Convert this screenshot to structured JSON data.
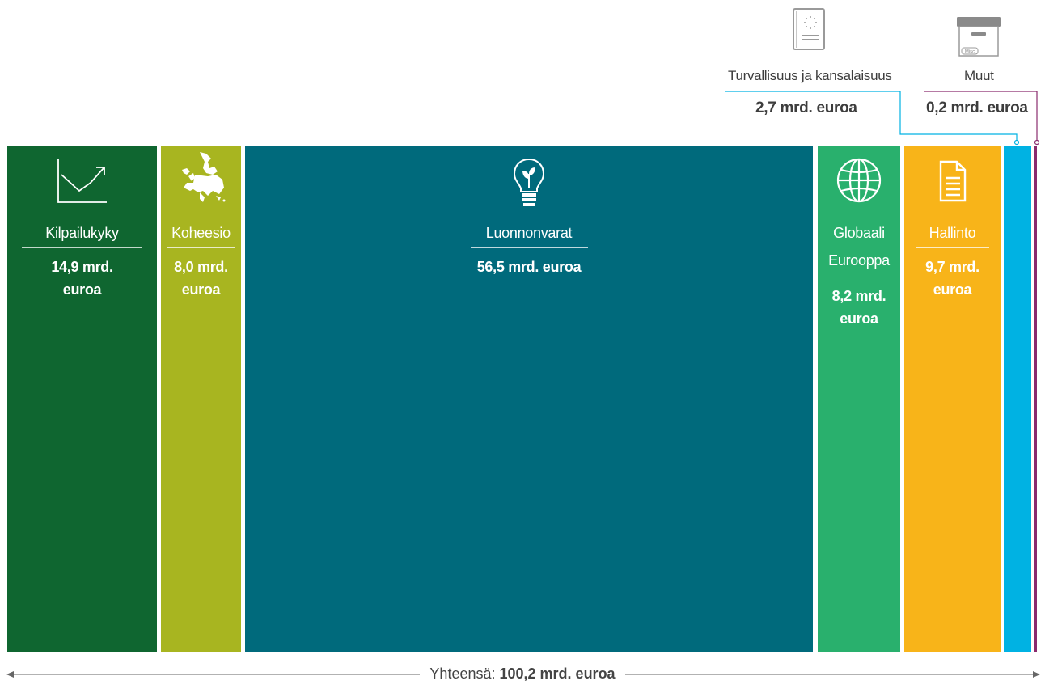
{
  "colors": {
    "kilpailukyky": "#0f6630",
    "koheesio": "#a8b520",
    "luonnonvarat": "#006a7c",
    "globaali": "#29b06d",
    "hallinto": "#f8b419",
    "turvallisuus": "#00b2e3",
    "muut": "#8a2a6e"
  },
  "chart_data": {
    "type": "bar",
    "title": "",
    "xlabel": "",
    "ylabel": "",
    "categories": [
      "Kilpailukyky",
      "Koheesio",
      "Luonnonvarat",
      "Globaali Eurooppa",
      "Hallinto",
      "Turvallisuus ja kansalaisuus",
      "Muut"
    ],
    "values": [
      14.9,
      8.0,
      56.5,
      8.2,
      9.7,
      2.7,
      0.2
    ],
    "unit": "mrd. euroa",
    "total": 100.2,
    "segments": [
      {
        "key": "kilpailukyky",
        "name": "Kilpailukyky",
        "amount_line1": "14,9 mrd.",
        "amount_line2": "euroa",
        "icon": "trend-chart-icon"
      },
      {
        "key": "koheesio",
        "name": "Koheesio",
        "amount_line1": "8,0 mrd.",
        "amount_line2": "euroa",
        "icon": "europe-map-icon"
      },
      {
        "key": "luonnonvarat",
        "name": "Luonnonvarat",
        "amount_line1": "56,5 mrd. euroa",
        "amount_line2": "",
        "icon": "lightbulb-sprout-icon"
      },
      {
        "key": "globaali",
        "name": "Globaali Eurooppa",
        "name_line1": "Globaali",
        "name_line2": "Eurooppa",
        "amount_line1": "8,2 mrd.",
        "amount_line2": "euroa",
        "icon": "globe-icon"
      },
      {
        "key": "hallinto",
        "name": "Hallinto",
        "amount_line1": "9,7 mrd.",
        "amount_line2": "euroa",
        "icon": "document-icon"
      },
      {
        "key": "turvallisuus",
        "name": "Turvallisuus ja kansalaisuus",
        "amount": "2,7 mrd. euroa",
        "icon": "passport-icon"
      },
      {
        "key": "muut",
        "name": "Muut",
        "amount": "0,2 mrd. euroa",
        "icon": "archive-box-icon",
        "icon_label": "Misc"
      }
    ]
  },
  "total": {
    "label": "Yhteensä:",
    "value": "100,2 mrd. euroa"
  }
}
